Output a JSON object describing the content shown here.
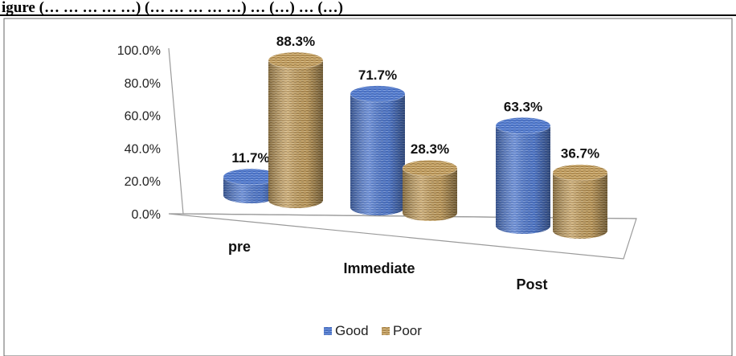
{
  "header_text": "igure (… … … … …) (… … … … …) … (…) … (…)",
  "chart_data": {
    "type": "bar",
    "style": "3d-cylinder",
    "categories": [
      "pre",
      "Immediate",
      "Post"
    ],
    "series": [
      {
        "name": "Good",
        "values": [
          11.7,
          71.7,
          63.3
        ],
        "labels": [
          "11.7%",
          "71.7%",
          "63.3%"
        ],
        "color": "#4a72c4"
      },
      {
        "name": "Poor",
        "values": [
          88.3,
          28.3,
          36.7
        ],
        "labels": [
          "88.3%",
          "28.3%",
          "36.7%"
        ],
        "color": "#b8955a"
      }
    ],
    "y_ticks": [
      "0.0%",
      "20.0%",
      "40.0%",
      "60.0%",
      "80.0%",
      "100.0%"
    ],
    "ylim": [
      0,
      100
    ],
    "grid": false,
    "legend_position": "bottom"
  }
}
